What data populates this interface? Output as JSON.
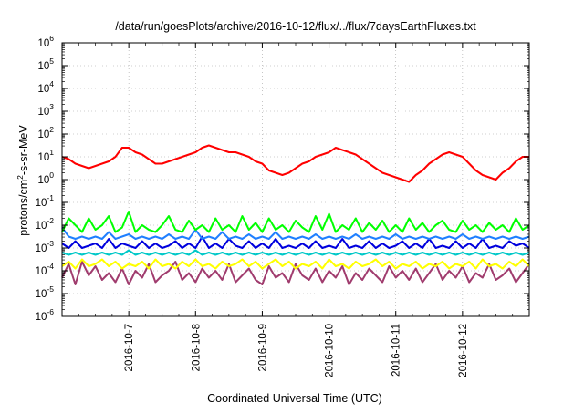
{
  "chart_data": {
    "type": "line",
    "title": "/data/run/goesPlots/archive/2016-10-12/flux/../flux/7daysEarthFluxes.txt",
    "xlabel": "Coordinated Universal Time (UTC)",
    "ylabel_parts": [
      "protons/cm",
      "2",
      "-s-sr-MeV"
    ],
    "yscale": "log",
    "ylim_exp": [
      -6,
      6
    ],
    "ytick_exponents": [
      "-6",
      "-5",
      "-4",
      "-3",
      "-2",
      "-1",
      "0",
      "1",
      "2",
      "3",
      "4",
      "5",
      "6"
    ],
    "ytick_base": "10",
    "xtick_labels": [
      "2016-10-7",
      "2016-10-8",
      "2016-10-9",
      "2016-10-10",
      "2016-10-11",
      "2016-10-12"
    ],
    "x_start_day": 0,
    "x_end_day": 7,
    "xtick_days": [
      1,
      2,
      3,
      4,
      5,
      6
    ],
    "grid": true,
    "legend": "none",
    "x_days": [
      0.0,
      0.1,
      0.2,
      0.3,
      0.4,
      0.5,
      0.6,
      0.7,
      0.8,
      0.9,
      1.0,
      1.1,
      1.2,
      1.3,
      1.4,
      1.5,
      1.6,
      1.7,
      1.8,
      1.9,
      2.0,
      2.1,
      2.2,
      2.3,
      2.4,
      2.5,
      2.6,
      2.7,
      2.8,
      2.9,
      3.0,
      3.1,
      3.2,
      3.3,
      3.4,
      3.5,
      3.6,
      3.7,
      3.8,
      3.9,
      4.0,
      4.1,
      4.2,
      4.3,
      4.4,
      4.5,
      4.6,
      4.7,
      4.8,
      4.9,
      5.0,
      5.1,
      5.2,
      5.3,
      5.4,
      5.5,
      5.6,
      5.7,
      5.8,
      5.9,
      6.0,
      6.1,
      6.2,
      6.3,
      6.4,
      6.5,
      6.6,
      6.7,
      6.8,
      6.9,
      7.0
    ],
    "series": [
      {
        "color": "#ff0000",
        "log10_values": [
          1.0,
          0.9,
          0.7,
          0.6,
          0.5,
          0.6,
          0.7,
          0.8,
          1.0,
          1.4,
          1.4,
          1.2,
          1.1,
          0.9,
          0.7,
          0.7,
          0.8,
          0.9,
          1.0,
          1.1,
          1.2,
          1.4,
          1.5,
          1.4,
          1.3,
          1.2,
          1.2,
          1.1,
          1.0,
          0.8,
          0.7,
          0.4,
          0.3,
          0.2,
          0.3,
          0.5,
          0.7,
          0.8,
          1.0,
          1.1,
          1.2,
          1.4,
          1.3,
          1.2,
          1.1,
          0.9,
          0.7,
          0.5,
          0.3,
          0.2,
          0.1,
          0.0,
          -0.1,
          0.2,
          0.4,
          0.7,
          0.9,
          1.1,
          1.2,
          1.1,
          1.0,
          0.7,
          0.4,
          0.2,
          0.1,
          0.0,
          0.3,
          0.5,
          0.8,
          1.0,
          1.0
        ]
      },
      {
        "color": "#00ff00",
        "log10_values": [
          -2.3,
          -1.7,
          -2.0,
          -2.3,
          -1.7,
          -2.2,
          -2.0,
          -1.6,
          -2.3,
          -2.1,
          -1.4,
          -2.3,
          -2.0,
          -2.2,
          -2.3,
          -2.0,
          -1.6,
          -2.2,
          -2.3,
          -1.8,
          -2.2,
          -2.0,
          -2.3,
          -1.7,
          -2.2,
          -2.0,
          -2.3,
          -1.6,
          -2.2,
          -1.9,
          -2.3,
          -1.7,
          -2.2,
          -2.0,
          -2.3,
          -1.8,
          -2.1,
          -2.3,
          -1.6,
          -2.2,
          -1.5,
          -2.3,
          -2.0,
          -2.2,
          -1.7,
          -2.3,
          -1.9,
          -2.2,
          -1.8,
          -2.3,
          -2.0,
          -2.3,
          -1.7,
          -2.2,
          -1.9,
          -2.3,
          -2.0,
          -1.8,
          -2.2,
          -2.3,
          -1.8,
          -2.2,
          -2.0,
          -2.3,
          -1.9,
          -2.2,
          -2.0,
          -2.3,
          -1.7,
          -2.2,
          -2.0
        ]
      },
      {
        "color": "#1f7fff",
        "log10_values": [
          -2.1,
          -2.5,
          -2.6,
          -2.5,
          -2.6,
          -2.5,
          -2.6,
          -2.3,
          -2.6,
          -2.5,
          -2.4,
          -2.6,
          -2.5,
          -2.6,
          -2.5,
          -2.6,
          -2.4,
          -2.6,
          -2.5,
          -2.6,
          -2.2,
          -2.6,
          -2.5,
          -2.6,
          -2.3,
          -2.6,
          -2.5,
          -2.6,
          -2.4,
          -2.6,
          -2.5,
          -2.6,
          -2.3,
          -2.6,
          -2.5,
          -2.6,
          -2.5,
          -2.6,
          -2.4,
          -2.6,
          -2.5,
          -2.6,
          -2.5,
          -2.6,
          -2.4,
          -2.6,
          -2.5,
          -2.6,
          -2.5,
          -2.6,
          -2.4,
          -2.6,
          -2.5,
          -2.6,
          -2.5,
          -2.6,
          -2.5,
          -2.6,
          -2.5,
          -2.6,
          -2.4,
          -2.6,
          -2.5,
          -2.6,
          -2.5,
          -2.6,
          -2.5,
          -2.6,
          -2.5,
          -2.6,
          -2.5
        ]
      },
      {
        "color": "#0000dd",
        "log10_values": [
          -2.8,
          -3.0,
          -2.7,
          -3.0,
          -2.9,
          -2.8,
          -3.0,
          -2.6,
          -3.0,
          -2.8,
          -2.9,
          -3.0,
          -2.7,
          -3.0,
          -2.8,
          -3.0,
          -2.9,
          -2.7,
          -3.0,
          -2.8,
          -3.0,
          -2.5,
          -3.0,
          -2.8,
          -3.0,
          -2.6,
          -2.9,
          -3.0,
          -2.7,
          -3.0,
          -2.8,
          -3.0,
          -2.6,
          -3.0,
          -2.9,
          -3.0,
          -2.8,
          -3.0,
          -2.7,
          -3.0,
          -2.9,
          -3.0,
          -2.6,
          -3.0,
          -2.9,
          -3.0,
          -2.7,
          -3.0,
          -2.8,
          -3.0,
          -2.9,
          -2.7,
          -3.0,
          -2.8,
          -3.0,
          -2.6,
          -3.0,
          -2.9,
          -3.0,
          -2.7,
          -3.0,
          -2.8,
          -3.0,
          -2.6,
          -3.0,
          -2.9,
          -3.0,
          -2.7,
          -2.9,
          -2.8,
          -3.0
        ]
      },
      {
        "color": "#00c8c8",
        "log10_values": [
          -3.2,
          -3.3,
          -3.2,
          -3.3,
          -3.2,
          -3.3,
          -3.2,
          -3.3,
          -3.2,
          -3.3,
          -3.1,
          -3.3,
          -3.2,
          -3.3,
          -3.2,
          -3.3,
          -3.2,
          -3.3,
          -3.2,
          -3.3,
          -3.1,
          -3.3,
          -3.2,
          -3.3,
          -3.2,
          -3.3,
          -3.2,
          -3.3,
          -3.2,
          -3.3,
          -3.2,
          -3.3,
          -3.2,
          -3.3,
          -3.2,
          -3.3,
          -3.2,
          -3.3,
          -3.2,
          -3.3,
          -3.2,
          -3.3,
          -3.2,
          -3.3,
          -3.2,
          -3.3,
          -3.2,
          -3.3,
          -3.2,
          -3.3,
          -3.2,
          -3.3,
          -3.2,
          -3.3,
          -3.2,
          -3.3,
          -3.2,
          -3.3,
          -3.2,
          -3.3,
          -3.2,
          -3.3,
          -3.2,
          -3.3,
          -3.2,
          -3.3,
          -3.2,
          -3.3,
          -3.2,
          -3.3,
          -3.2
        ]
      },
      {
        "color": "#ffff00",
        "log10_values": [
          -3.8,
          -3.6,
          -3.9,
          -3.5,
          -3.8,
          -3.7,
          -3.5,
          -3.8,
          -3.6,
          -3.9,
          -3.7,
          -3.8,
          -3.6,
          -3.9,
          -3.5,
          -3.8,
          -3.7,
          -3.9,
          -3.6,
          -3.8,
          -3.5,
          -3.8,
          -3.7,
          -3.9,
          -3.6,
          -3.8,
          -3.7,
          -3.5,
          -3.8,
          -3.6,
          -3.9,
          -3.7,
          -3.5,
          -3.8,
          -3.6,
          -3.9,
          -3.7,
          -3.8,
          -3.6,
          -3.9,
          -3.5,
          -3.8,
          -3.7,
          -3.9,
          -3.6,
          -3.8,
          -3.7,
          -3.5,
          -3.8,
          -3.6,
          -3.9,
          -3.7,
          -3.8,
          -3.6,
          -3.9,
          -3.7,
          -3.8,
          -3.6,
          -3.9,
          -3.7,
          -3.8,
          -3.6,
          -3.9,
          -3.5,
          -3.8,
          -3.7,
          -3.9,
          -3.6,
          -3.8,
          -3.5,
          -3.8
        ]
      },
      {
        "color": "#a03c6e",
        "log10_values": [
          -4.3,
          -3.7,
          -4.6,
          -3.6,
          -4.2,
          -3.8,
          -4.4,
          -4.1,
          -4.5,
          -3.9,
          -4.6,
          -4.0,
          -4.3,
          -3.7,
          -4.5,
          -4.2,
          -4.0,
          -3.6,
          -4.4,
          -4.1,
          -4.5,
          -3.9,
          -4.3,
          -4.0,
          -4.4,
          -3.7,
          -4.5,
          -4.2,
          -3.9,
          -4.4,
          -4.6,
          -3.8,
          -4.3,
          -4.1,
          -4.5,
          -3.7,
          -4.2,
          -4.4,
          -3.9,
          -4.5,
          -4.0,
          -4.3,
          -3.8,
          -4.6,
          -4.1,
          -4.4,
          -3.9,
          -4.2,
          -4.5,
          -3.8,
          -4.3,
          -4.0,
          -4.4,
          -3.9,
          -4.5,
          -4.1,
          -3.7,
          -4.4,
          -4.0,
          -4.3,
          -3.8,
          -4.5,
          -4.1,
          -4.3,
          -3.7,
          -4.4,
          -4.2,
          -3.9,
          -4.5,
          -4.1,
          -3.7
        ]
      }
    ]
  }
}
